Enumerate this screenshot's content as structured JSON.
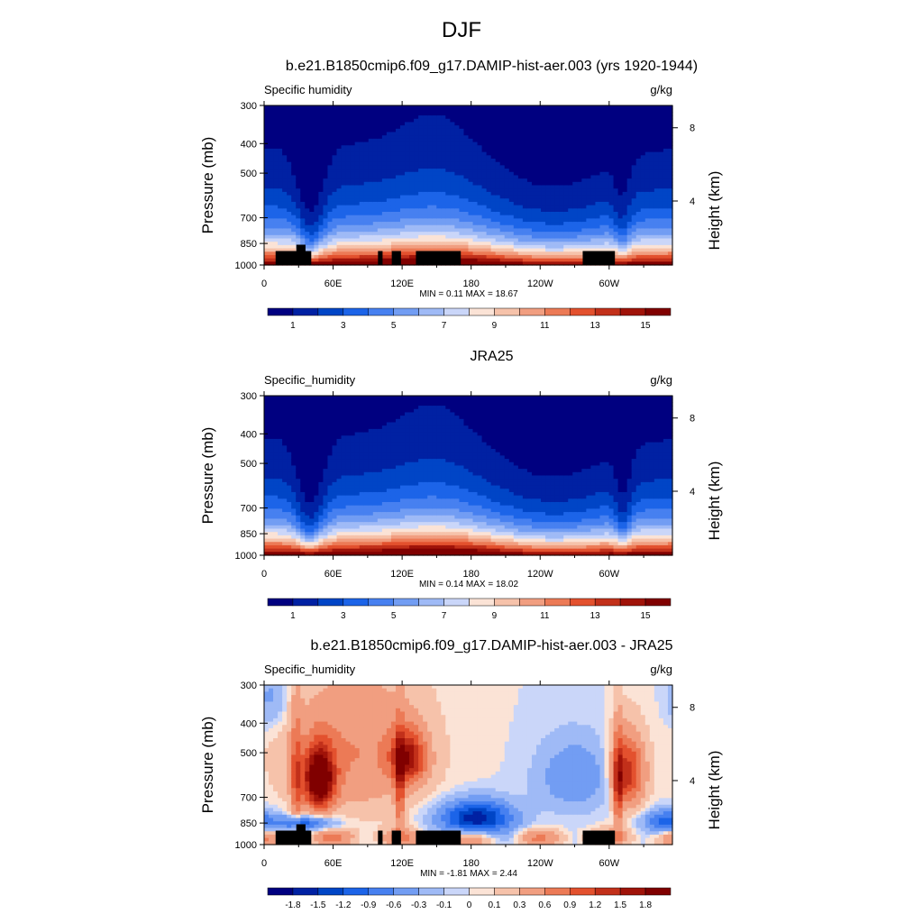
{
  "figure": {
    "title": "DJF"
  },
  "colors": {
    "levels": [
      "#000080",
      "#0021a3",
      "#0045c6",
      "#1c64e8",
      "#4780f0",
      "#729df3",
      "#9fbaf6",
      "#cad6f9",
      "#fbe3d6",
      "#f6c2aa",
      "#f19e80",
      "#ec7a56",
      "#e3512e",
      "#c2301a",
      "#a01309",
      "#800000"
    ]
  },
  "chart_data": [
    {
      "type": "heatmap",
      "title": "b.e21.B1850cmip6.f09_g17.DAMIP-hist-aer.003 (yrs 1920-1944)",
      "left_label": "Specific humidity",
      "right_label": "g/kg",
      "ylabel": "Pressure (mb)",
      "ylabel_right": "Height (km)",
      "xlabel": "",
      "x_ticks": [
        "0",
        "60E",
        "120E",
        "180",
        "120W",
        "60W"
      ],
      "x_range": [
        0,
        355
      ],
      "y_ticks": [
        "300",
        "400",
        "500",
        "700",
        "850",
        "1000"
      ],
      "y_range": [
        300,
        1000
      ],
      "y_scale": "log",
      "y_right_ticks": [
        "8",
        "4"
      ],
      "stats": "MIN =   0.11  MAX =  18.67",
      "colorbar_labels": [
        "1",
        "3",
        "5",
        "7",
        "9",
        "11",
        "13",
        "15"
      ],
      "field": "mean_model"
    },
    {
      "type": "heatmap",
      "title": "JRA25",
      "left_label": "Specific_humidity",
      "right_label": "g/kg",
      "ylabel": "Pressure (mb)",
      "ylabel_right": "Height (km)",
      "xlabel": "",
      "x_ticks": [
        "0",
        "60E",
        "120E",
        "180",
        "120W",
        "60W"
      ],
      "x_range": [
        0,
        355
      ],
      "y_ticks": [
        "300",
        "400",
        "500",
        "700",
        "850",
        "1000"
      ],
      "y_range": [
        300,
        1000
      ],
      "y_scale": "log",
      "y_right_ticks": [
        "8",
        "4"
      ],
      "stats": "MIN =   0.14  MAX =  18.02",
      "colorbar_labels": [
        "1",
        "3",
        "5",
        "7",
        "9",
        "11",
        "13",
        "15"
      ],
      "field": "mean_obs"
    },
    {
      "type": "heatmap",
      "title": "b.e21.B1850cmip6.f09_g17.DAMIP-hist-aer.003 - JRA25",
      "left_label": "Specific_humidity",
      "right_label": "g/kg",
      "ylabel": "Pressure (mb)",
      "ylabel_right": "Height (km)",
      "xlabel": "",
      "x_ticks": [
        "0",
        "60E",
        "120E",
        "180",
        "120W",
        "60W"
      ],
      "x_range": [
        0,
        355
      ],
      "y_ticks": [
        "300",
        "400",
        "500",
        "700",
        "850",
        "1000"
      ],
      "y_range": [
        300,
        1000
      ],
      "y_scale": "log",
      "y_right_ticks": [
        "8",
        "4"
      ],
      "stats": "MIN =  -1.81  MAX =   2.44",
      "colorbar_labels": [
        "-1.8",
        "-1.5",
        "-1.2",
        "-0.9",
        "-0.6",
        "-0.3",
        "-0.1",
        "0",
        "0.1",
        "0.3",
        "0.6",
        "0.9",
        "1.2",
        "1.5",
        "1.8"
      ],
      "field": "difference"
    }
  ]
}
